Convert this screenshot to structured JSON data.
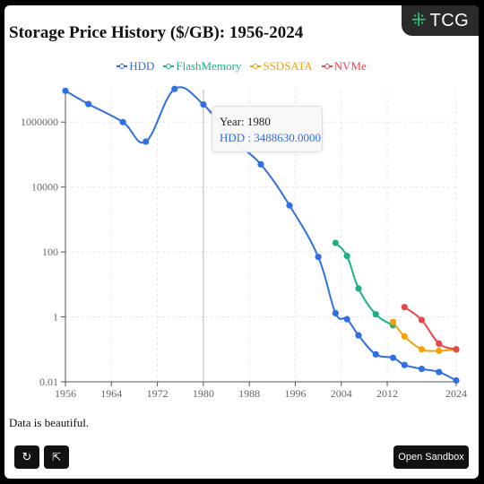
{
  "badge": {
    "text": "TCG",
    "icon": "tcg-logo-icon",
    "icon_glyph": "⁜"
  },
  "legend": [
    {
      "name": "HDD",
      "color": "#2f6fe0"
    },
    {
      "name": "FlashMemory",
      "color": "#1fb07e"
    },
    {
      "name": "SSDSATA",
      "color": "#f0a20f"
    },
    {
      "name": "NVMe",
      "color": "#e8474a"
    }
  ],
  "tooltip": {
    "year_text": "Year: 1980",
    "value_text": "HDD : 3488630.0000"
  },
  "caption": "Data is beautiful.",
  "buttons": {
    "refresh_icon": "refresh-icon",
    "refresh_glyph": "↻",
    "open_icon": "external-link-icon",
    "open_glyph": "⇱",
    "sandbox_label": "Open Sandbox"
  },
  "chart_data": {
    "type": "line",
    "title": "Storage Price History ($/GB): 1956-2024",
    "xlabel": "",
    "ylabel": "",
    "y_scale": "log",
    "xlim": [
      1956,
      2024
    ],
    "ylim": [
      0.01,
      10000000
    ],
    "x_ticks": [
      "1956",
      "1964",
      "1972",
      "1980",
      "1988",
      "1996",
      "2004",
      "2012",
      "2024"
    ],
    "y_ticks": [
      "0.01",
      "1",
      "100",
      "10000",
      "1000000"
    ],
    "grid": true,
    "legend_position": "top-center",
    "hover_x": 1980,
    "series": [
      {
        "name": "HDD",
        "color": "#2f6fe0",
        "points": [
          [
            1956,
            9200000
          ],
          [
            1960,
            3600000
          ],
          [
            1966,
            1000000
          ],
          [
            1970,
            250000
          ],
          [
            1975,
            10500000
          ],
          [
            1980,
            3488630
          ],
          [
            1985,
            310000
          ],
          [
            1990,
            50000
          ],
          [
            1995,
            2700
          ],
          [
            2000,
            70
          ],
          [
            2003,
            1.3
          ],
          [
            2005,
            0.85
          ],
          [
            2007,
            0.27
          ],
          [
            2010,
            0.07
          ],
          [
            2013,
            0.055
          ],
          [
            2015,
            0.033
          ],
          [
            2018,
            0.025
          ],
          [
            2021,
            0.02
          ],
          [
            2024,
            0.011
          ]
        ]
      },
      {
        "name": "FlashMemory",
        "color": "#1fb07e",
        "points": [
          [
            2003,
            190
          ],
          [
            2005,
            75
          ],
          [
            2007,
            7.5
          ],
          [
            2010,
            1.2
          ],
          [
            2013,
            0.55
          ]
        ]
      },
      {
        "name": "SSDSATA",
        "color": "#f0a20f",
        "points": [
          [
            2013,
            0.7
          ],
          [
            2015,
            0.25
          ],
          [
            2018,
            0.1
          ],
          [
            2021,
            0.09
          ],
          [
            2024,
            0.1
          ]
        ]
      },
      {
        "name": "NVMe",
        "color": "#e8474a",
        "points": [
          [
            2015,
            2
          ],
          [
            2018,
            0.8
          ],
          [
            2021,
            0.15
          ],
          [
            2024,
            0.1
          ]
        ]
      }
    ]
  }
}
